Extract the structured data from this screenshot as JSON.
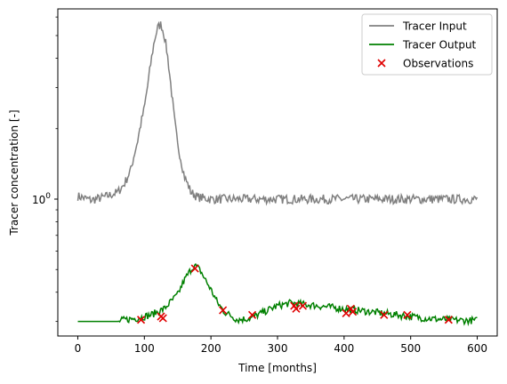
{
  "chart_data": {
    "type": "line",
    "title": "",
    "xlabel": "Time [months]",
    "ylabel": "Tracer concentration [-]",
    "xlim": [
      -30,
      630
    ],
    "ylim_log": [
      0.26,
      6.5
    ],
    "yscale": "log",
    "grid": false,
    "legend_position": "top-right",
    "x_ticks": [
      0,
      100,
      200,
      300,
      400,
      500,
      600
    ],
    "y_major_tick": {
      "value": 1,
      "label": "10^0"
    },
    "series": [
      {
        "name": "Tracer Input",
        "color": "#808080",
        "style": "line",
        "x": [
          0,
          20,
          40,
          60,
          70,
          80,
          90,
          100,
          105,
          110,
          115,
          120,
          125,
          130,
          135,
          140,
          145,
          150,
          160,
          170,
          180,
          200,
          250,
          300,
          350,
          400,
          450,
          500,
          550,
          600
        ],
        "y": [
          1.03,
          0.99,
          1.02,
          1.07,
          1.16,
          1.34,
          1.78,
          2.45,
          3.05,
          3.85,
          4.75,
          5.4,
          5.6,
          5.0,
          4.05,
          3.0,
          2.2,
          1.7,
          1.25,
          1.07,
          1.02,
          1.0,
          1.0,
          1.0,
          1.0,
          1.0,
          1.0,
          1.0,
          1.0,
          1.0
        ]
      },
      {
        "name": "Tracer Output",
        "color": "#008000",
        "style": "line",
        "x": [
          0,
          60,
          70,
          90,
          110,
          130,
          150,
          160,
          170,
          175,
          180,
          185,
          190,
          200,
          210,
          220,
          240,
          260,
          280,
          300,
          320,
          340,
          360,
          380,
          400,
          420,
          440,
          460,
          480,
          500,
          520,
          540,
          560,
          580,
          600
        ],
        "y": [
          0.3,
          0.3,
          0.305,
          0.31,
          0.32,
          0.34,
          0.39,
          0.45,
          0.5,
          0.52,
          0.51,
          0.49,
          0.46,
          0.41,
          0.36,
          0.33,
          0.305,
          0.31,
          0.33,
          0.35,
          0.36,
          0.355,
          0.35,
          0.345,
          0.34,
          0.335,
          0.33,
          0.325,
          0.32,
          0.315,
          0.31,
          0.307,
          0.305,
          0.303,
          0.303
        ]
      },
      {
        "name": "Observations",
        "color": "#e00000",
        "style": "marker-x",
        "x": [
          95,
          125,
          128,
          176,
          218,
          262,
          325,
          328,
          338,
          403,
          410,
          413,
          460,
          495,
          557
        ],
        "y": [
          0.305,
          0.315,
          0.31,
          0.505,
          0.335,
          0.32,
          0.35,
          0.34,
          0.35,
          0.325,
          0.34,
          0.33,
          0.32,
          0.32,
          0.305
        ]
      }
    ]
  }
}
